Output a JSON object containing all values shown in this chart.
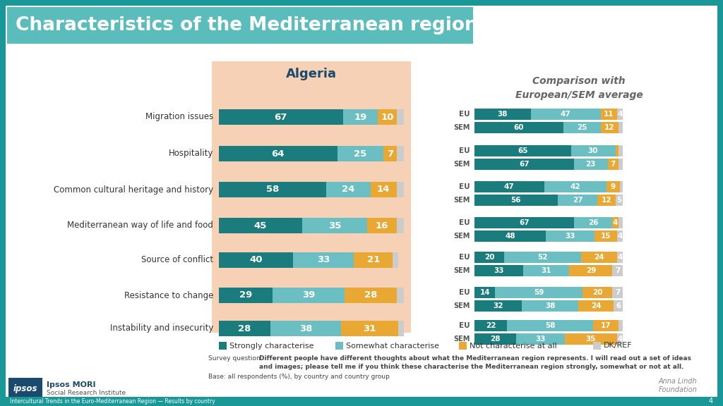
{
  "title": "Characteristics of the Mediterranean region",
  "algeria_title": "Algeria",
  "comparison_title": "Comparison with\nEuropean/SEM average",
  "categories": [
    "Migration issues",
    "Hospitality",
    "Common cultural heritage and history",
    "Mediterranean way of life and food",
    "Source of conflict",
    "Resistance to change",
    "Instability and insecurity"
  ],
  "algeria_data": {
    "strongly": [
      67,
      64,
      58,
      45,
      40,
      29,
      28
    ],
    "somewhat": [
      19,
      25,
      24,
      35,
      33,
      39,
      38
    ],
    "not_at_all": [
      10,
      7,
      14,
      16,
      21,
      28,
      31
    ],
    "dk_ref": [
      4,
      4,
      4,
      4,
      3,
      4,
      3
    ]
  },
  "eu_data": {
    "strongly": [
      38,
      65,
      47,
      67,
      20,
      14,
      22
    ],
    "somewhat": [
      47,
      30,
      42,
      26,
      52,
      59,
      58
    ],
    "not_at_all": [
      11,
      2,
      9,
      4,
      24,
      20,
      17
    ],
    "dk_ref": [
      4,
      3,
      2,
      3,
      4,
      7,
      3
    ]
  },
  "sem_data": {
    "strongly": [
      60,
      67,
      56,
      48,
      33,
      32,
      28
    ],
    "somewhat": [
      25,
      23,
      27,
      33,
      31,
      38,
      33
    ],
    "not_at_all": [
      12,
      7,
      12,
      15,
      29,
      24,
      35
    ],
    "dk_ref": [
      3,
      3,
      5,
      4,
      7,
      6,
      4
    ]
  },
  "colors": {
    "strongly": "#1a7c7c",
    "somewhat": "#6bbfc2",
    "not_at_all": "#e8a833",
    "dk_ref": "#cccccc"
  },
  "legend_labels": [
    "Strongly characterise",
    "Somewhat characterise",
    "Not characterise at all",
    "DK/REF"
  ],
  "survey_text_bold": "Different people have different thoughts about what the Mediterranean region represents. I will read out a set of ideas\nand images; please tell me if you think these characterise the Mediterranean region strongly, somewhat or not at all.",
  "base_text": "Base: all respondents (%), by country and country group",
  "footer_text": "Intercultural Trends in the Euro-Mediterranean Region — Results by country"
}
